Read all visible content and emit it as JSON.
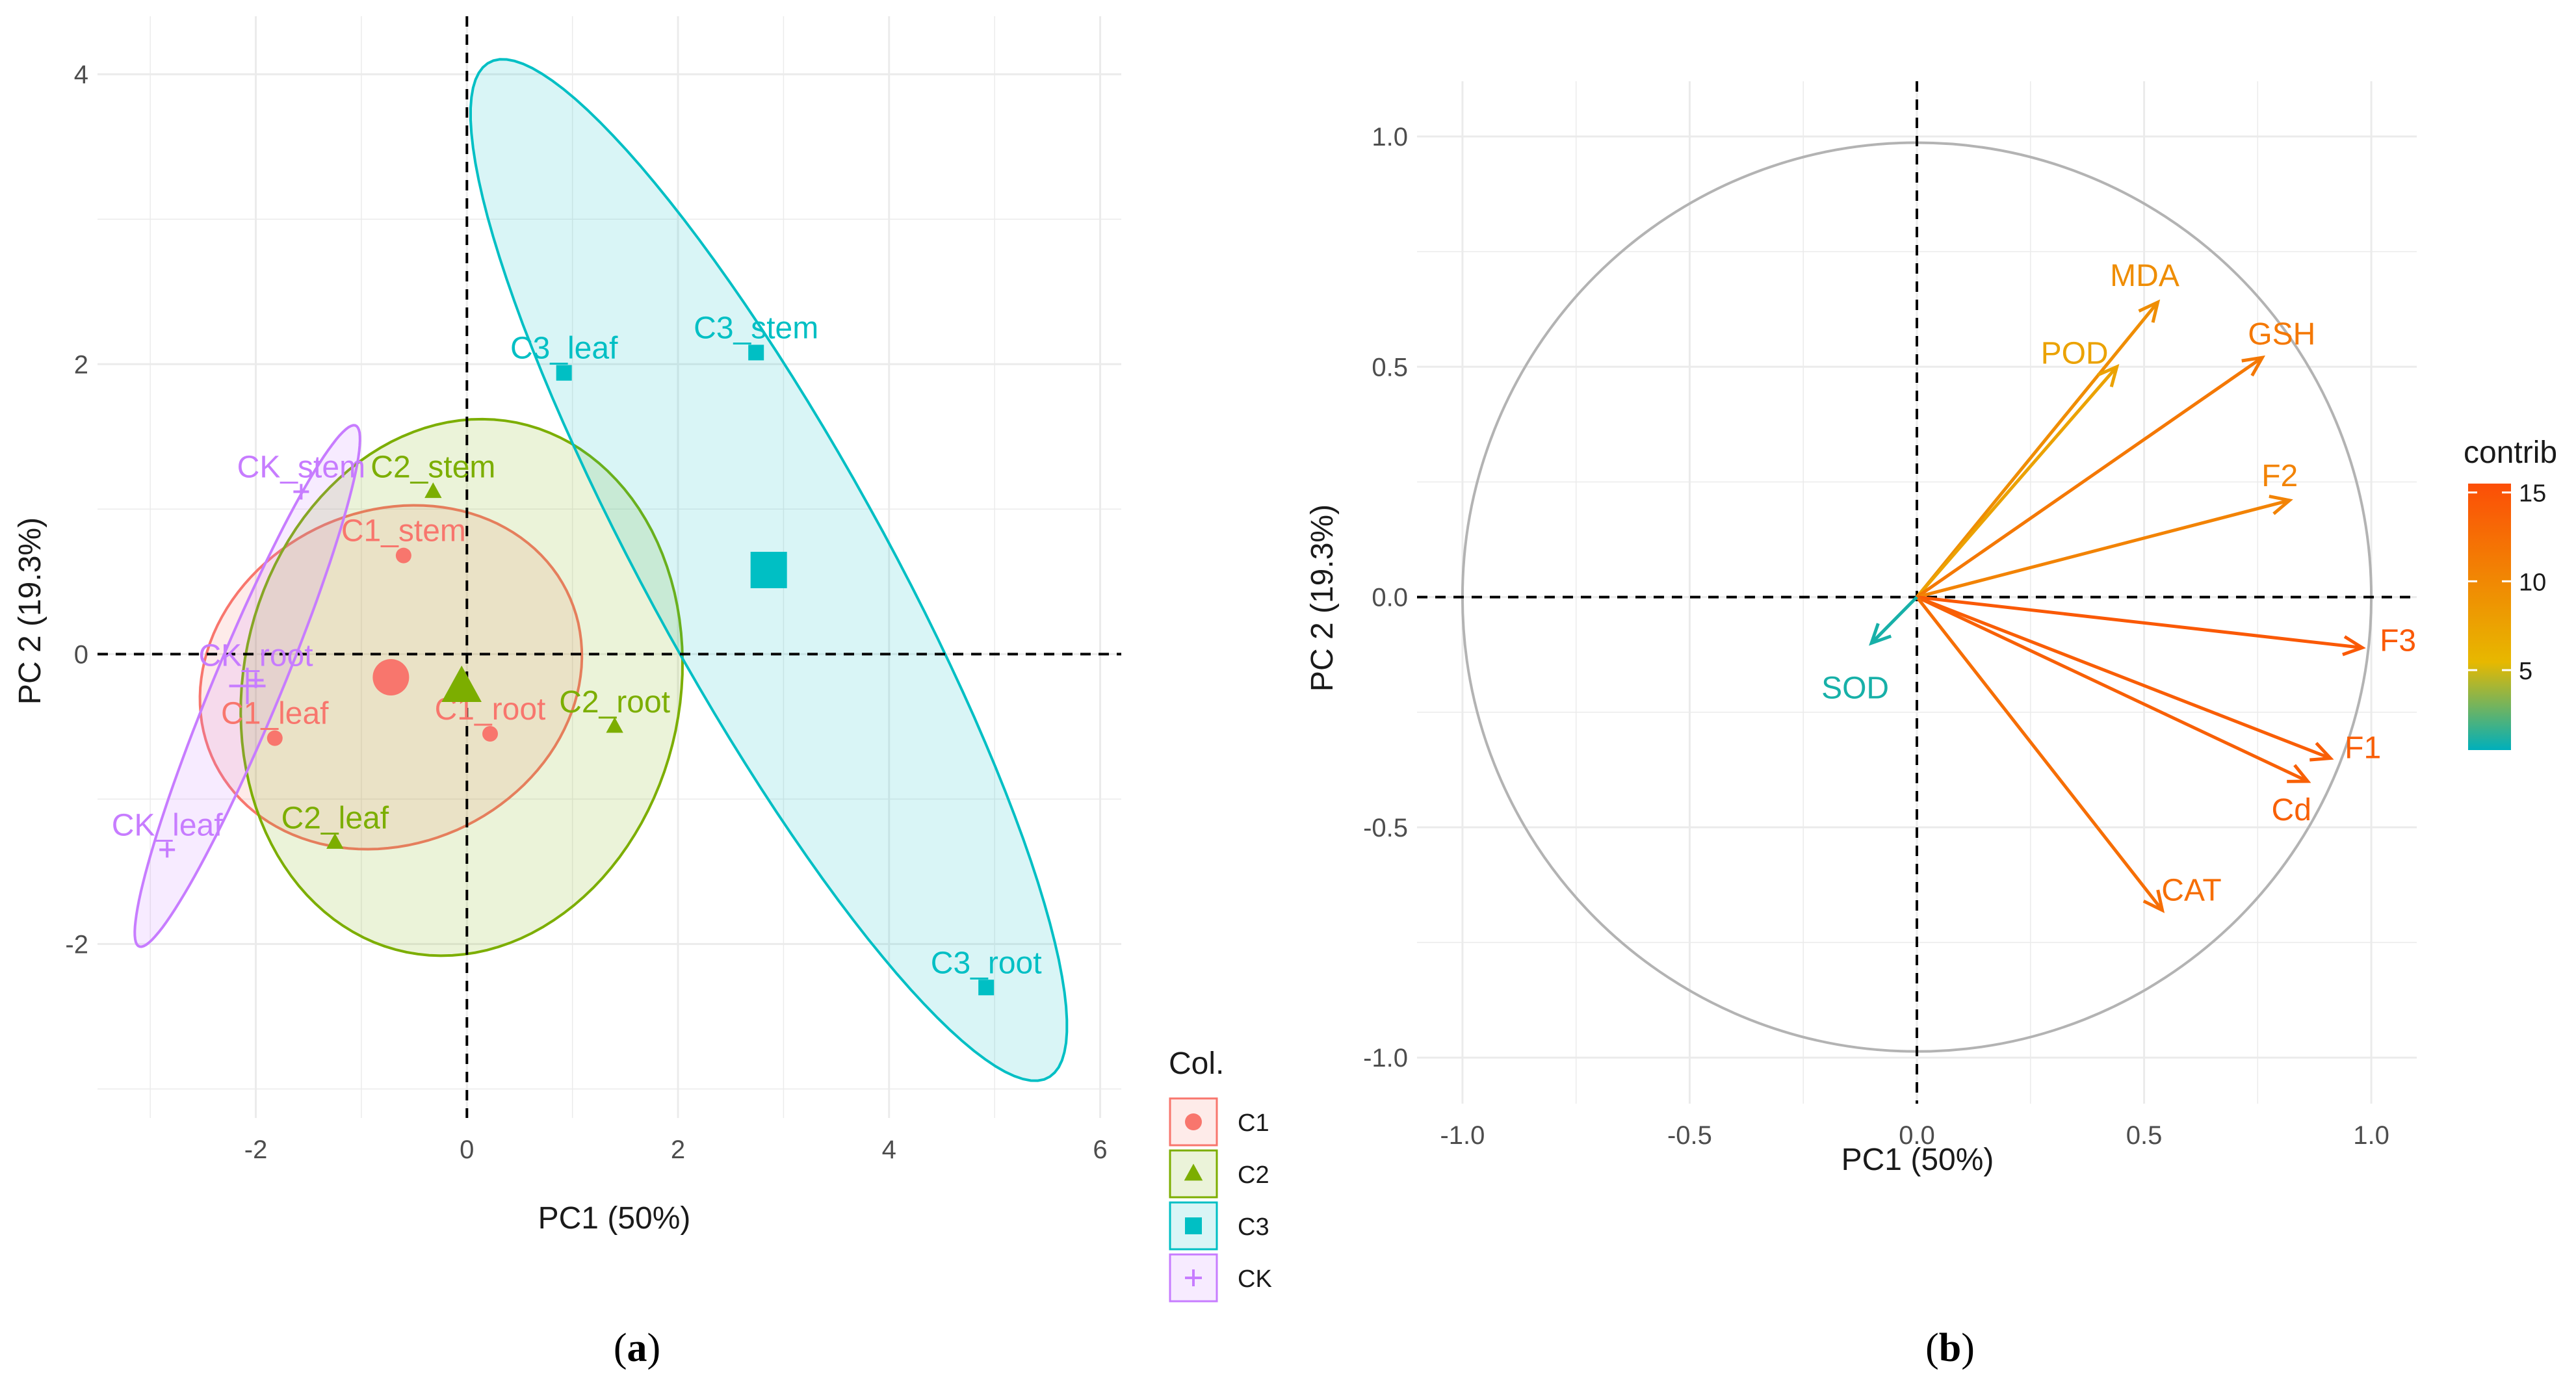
{
  "colors": {
    "C1": "#F8766D",
    "C2": "#7CAE00",
    "C3": "#00BFC4",
    "CK": "#C77CFF",
    "grid": "#ebebeb",
    "circle": "#b3b3b3"
  },
  "chart_data": [
    {
      "panel": "(a)",
      "panel_open": "(",
      "panel_letter": "a",
      "panel_close": ")",
      "type": "scatter",
      "xlabel": "PC1 (50%)",
      "ylabel": "PC 2 (19.3%)",
      "xlim": [
        -3.5,
        6.2
      ],
      "ylim": [
        -3.2,
        4.4
      ],
      "xticks": [
        -2,
        0,
        2,
        4,
        6
      ],
      "xtick_labels": [
        "-2",
        "0",
        "2",
        "4",
        "6"
      ],
      "yticks": [
        -2,
        0,
        2,
        4
      ],
      "ytick_labels": [
        "-2",
        "0",
        "2",
        "4"
      ],
      "legend_title": "Col.",
      "groups": [
        {
          "name": "C1",
          "shape": "circle",
          "centroid": [
            -0.72,
            -0.16
          ],
          "points": [
            {
              "label": "C1_stem",
              "x": -0.6,
              "y": 0.68
            },
            {
              "label": "C1_leaf",
              "x": -1.82,
              "y": -0.58
            },
            {
              "label": "C1_root",
              "x": 0.22,
              "y": -0.55
            }
          ],
          "ellipse": {
            "cx": -0.72,
            "cy": -0.16,
            "rx": 1.82,
            "ry": 1.17,
            "angle": 8
          }
        },
        {
          "name": "C2",
          "shape": "triangle",
          "centroid": [
            -0.05,
            -0.23
          ],
          "points": [
            {
              "label": "C2_stem",
              "x": -0.32,
              "y": 1.12
            },
            {
              "label": "C2_leaf",
              "x": -1.25,
              "y": -1.3
            },
            {
              "label": "C2_root",
              "x": 1.4,
              "y": -0.5
            }
          ],
          "ellipse": {
            "cx": -0.05,
            "cy": -0.23,
            "rx": 2.12,
            "ry": 1.82,
            "angle": 18
          }
        },
        {
          "name": "C3",
          "shape": "square",
          "centroid": [
            2.86,
            0.58
          ],
          "points": [
            {
              "label": "C3_leaf",
              "x": 0.92,
              "y": 1.94
            },
            {
              "label": "C3_stem",
              "x": 2.74,
              "y": 2.08
            },
            {
              "label": "C3_root",
              "x": 4.92,
              "y": -2.3
            }
          ],
          "ellipse": {
            "cx": 2.86,
            "cy": 0.58,
            "rx": 4.4,
            "ry": 1.02,
            "angle": -52
          }
        },
        {
          "name": "CK",
          "shape": "cross",
          "centroid": [
            -2.08,
            -0.22
          ],
          "points": [
            {
              "label": "CK_stem",
              "x": -1.57,
              "y": 1.12
            },
            {
              "label": "CK_root",
              "x": -2.0,
              "y": -0.18
            },
            {
              "label": "CK_leaf",
              "x": -2.84,
              "y": -1.35
            }
          ],
          "ellipse": {
            "cx": -2.08,
            "cy": -0.22,
            "rx": 2.07,
            "ry": 0.3,
            "angle": 60
          }
        }
      ]
    },
    {
      "panel": "(b)",
      "panel_open": "(",
      "panel_letter": "b",
      "panel_close": ")",
      "type": "biplot",
      "xlabel": "PC1 (50%)",
      "ylabel": "PC 2 (19.3%)",
      "xlim": [
        -1.1,
        1.1
      ],
      "ylim": [
        -1.1,
        1.12
      ],
      "xticks": [
        -1.0,
        -0.5,
        0.0,
        0.5,
        1.0
      ],
      "xtick_labels": [
        "-1.0",
        "-0.5",
        "0.0",
        "0.5",
        "1.0"
      ],
      "yticks": [
        -1.0,
        -0.5,
        0.0,
        0.5,
        1.0
      ],
      "ytick_labels": [
        "-1.0",
        "-0.5",
        "0.0",
        "0.5",
        "1.0"
      ],
      "legend_title": "contrib",
      "legend_ticks": [
        5,
        10,
        15
      ],
      "legend_tick_labels": [
        "5",
        "10",
        "15"
      ],
      "legend_range": [
        0.5,
        15.5
      ],
      "arrows": [
        {
          "label": "MDA",
          "x": 0.53,
          "y": 0.64,
          "contrib": 9.5
        },
        {
          "label": "POD",
          "x": 0.44,
          "y": 0.5,
          "contrib": 7.5
        },
        {
          "label": "GSH",
          "x": 0.76,
          "y": 0.52,
          "contrib": 11.5
        },
        {
          "label": "F2",
          "x": 0.82,
          "y": 0.21,
          "contrib": 10.5
        },
        {
          "label": "F3",
          "x": 0.98,
          "y": -0.11,
          "contrib": 14.5
        },
        {
          "label": "F1",
          "x": 0.91,
          "y": -0.35,
          "contrib": 14.0
        },
        {
          "label": "Cd",
          "x": 0.86,
          "y": -0.4,
          "contrib": 13.8
        },
        {
          "label": "CAT",
          "x": 0.54,
          "y": -0.68,
          "contrib": 12.5
        },
        {
          "label": "SOD",
          "x": -0.1,
          "y": -0.1,
          "contrib": 1.0
        }
      ]
    }
  ]
}
